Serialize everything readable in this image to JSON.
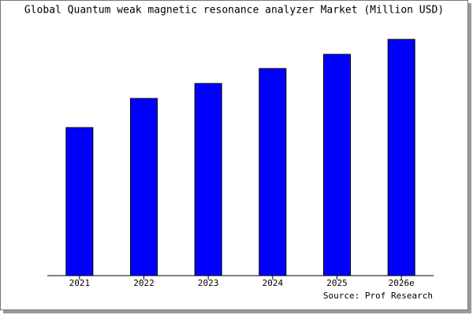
{
  "chart_data": {
    "type": "bar",
    "title": "Global Quantum weak magnetic resonance analyzer Market (Million USD)",
    "categories": [
      "2021",
      "2022",
      "2023",
      "2024",
      "2025",
      "2026e"
    ],
    "values": [
      188,
      225,
      244,
      263,
      281,
      300
    ],
    "color": "#0000ff",
    "ylim": [
      0,
      310
    ],
    "source": "Source: Prof Research"
  }
}
